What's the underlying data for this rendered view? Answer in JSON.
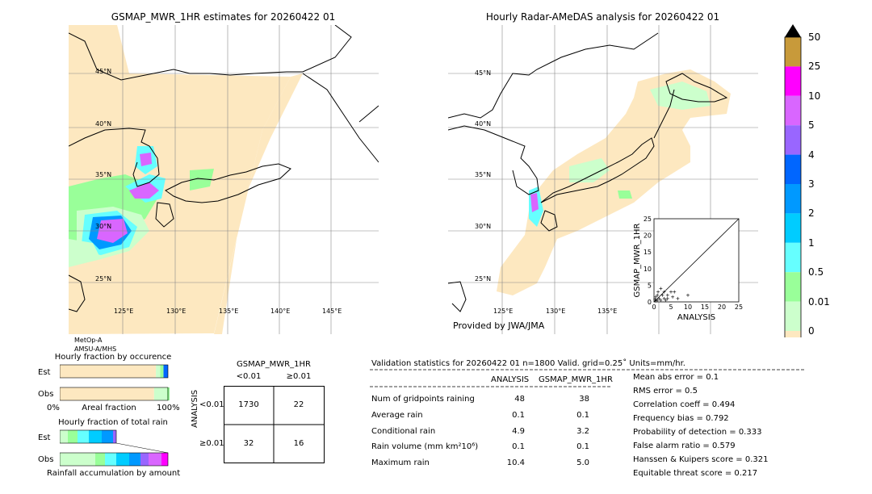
{
  "left_map": {
    "title": "GSMAP_MWR_1HR estimates for 20260422 01",
    "lat_labels": [
      "40°N",
      "35°N",
      "30°N",
      "25°N"
    ],
    "lon_labels": [
      "125°E",
      "130°E",
      "135°E",
      "140°E",
      "145°E"
    ],
    "top_partial_label": "45°N",
    "sensors": [
      "MetOp-A",
      "AMSU-A/MHS"
    ]
  },
  "right_map": {
    "title": "Hourly Radar-AMeDAS analysis for 20260422 01",
    "lat_labels": [
      "45°N",
      "40°N",
      "35°N",
      "30°N",
      "25°N"
    ],
    "lon_labels": [
      "125°E",
      "130°E",
      "135°E"
    ],
    "provider": "Provided by JWA/JMA"
  },
  "colorbar": {
    "labels": [
      "50",
      "25",
      "10",
      "5",
      "4",
      "3",
      "2",
      "1",
      "0.5",
      "0.01",
      "0"
    ],
    "colors": [
      "#c89a3a",
      "#ff00ff",
      "#d966ff",
      "#9966ff",
      "#0066ff",
      "#0099ff",
      "#00ccff",
      "#66ffff",
      "#99ff99",
      "#ccffcc",
      "#fde8c0"
    ],
    "extend_color": "#000000"
  },
  "scatter": {
    "xlabel": "ANALYSIS",
    "ylabel": "GSMAP_MWR_1HR",
    "xlim": [
      0,
      25
    ],
    "ylim": [
      0,
      25
    ],
    "ticks": [
      "0",
      "5",
      "10",
      "15",
      "20",
      "25"
    ]
  },
  "fraction_occurrence": {
    "title": "Hourly fraction by occurence",
    "rows": [
      "Est",
      "Obs"
    ],
    "axis_left": "0%",
    "axis_mid": "Areal fraction",
    "axis_right": "100%"
  },
  "fraction_total": {
    "title": "Hourly fraction of total rain",
    "rows": [
      "Est",
      "Obs"
    ],
    "footer": "Rainfall accumulation by amount"
  },
  "contingency": {
    "title": "GSMAP_MWR_1HR",
    "col_headers": [
      "<0.01",
      "≥0.01"
    ],
    "row_axis": "ANALYSIS",
    "row_headers": [
      "<0.01",
      "≥0.01"
    ],
    "cells": [
      [
        "1730",
        "22"
      ],
      [
        "32",
        "16"
      ]
    ]
  },
  "validation": {
    "header": "Validation statistics for 20260422 01  n=1800 Valid. grid=0.25˚ Units=mm/hr.",
    "col_analysis": "ANALYSIS",
    "col_gsmap": "GSMAP_MWR_1HR",
    "rows": [
      {
        "label": "Num of gridpoints raining",
        "analysis": "48",
        "gsmap": "38"
      },
      {
        "label": "Average rain",
        "analysis": "0.1",
        "gsmap": "0.1"
      },
      {
        "label": "Conditional rain",
        "analysis": "4.9",
        "gsmap": "3.2"
      },
      {
        "label": "Rain volume (mm km²10⁶)",
        "analysis": "0.1",
        "gsmap": "0.1"
      },
      {
        "label": "Maximum rain",
        "analysis": "10.4",
        "gsmap": "5.0"
      }
    ],
    "scores": [
      "Mean abs error =    0.1",
      "RMS error =    0.5",
      "Correlation coeff =  0.494",
      "Frequency bias =  0.792",
      "Probability of detection =  0.333",
      "False alarm ratio =  0.579",
      "Hanssen & Kuipers score =  0.321",
      "Equitable threat score =  0.217"
    ]
  },
  "chart_data": [
    {
      "type": "scatter",
      "xlabel": "ANALYSIS",
      "ylabel": "GSMAP_MWR_1HR",
      "xlim": [
        0,
        25
      ],
      "ylim": [
        0,
        25
      ],
      "points": [
        [
          0.5,
          0.3
        ],
        [
          1,
          0.5
        ],
        [
          1.5,
          1
        ],
        [
          2,
          0.5
        ],
        [
          3,
          1
        ],
        [
          4,
          2
        ],
        [
          5,
          3
        ],
        [
          6,
          3
        ],
        [
          2,
          4
        ],
        [
          3,
          3
        ],
        [
          1,
          2
        ],
        [
          0.5,
          1.5
        ],
        [
          7,
          1
        ],
        [
          10,
          2
        ],
        [
          4,
          1
        ],
        [
          2.5,
          2
        ],
        [
          1.2,
          3
        ],
        [
          3.5,
          0.5
        ],
        [
          0.3,
          0.8
        ],
        [
          5.5,
          1.5
        ]
      ]
    },
    {
      "type": "bar",
      "title": "Hourly fraction by occurence",
      "categories": [
        "Est",
        "Obs"
      ],
      "series": [
        {
          "values": [
            0.889,
            0.872
          ]
        },
        {
          "values": [
            0.04,
            0.12
          ]
        },
        {
          "values": [
            0.03,
            0.04
          ]
        }
      ]
    }
  ]
}
